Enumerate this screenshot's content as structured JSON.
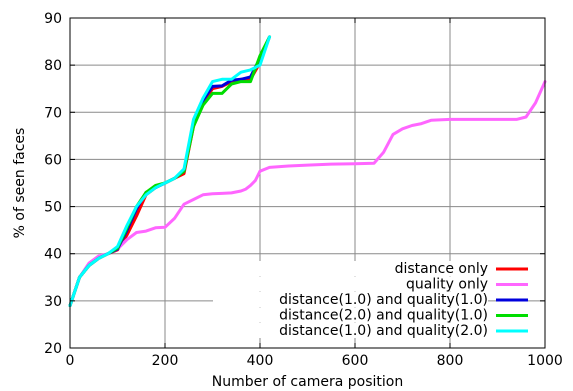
{
  "chart_data": {
    "type": "line",
    "title": "",
    "xlabel": "Number of camera position",
    "ylabel": "% of seen faces",
    "xlim": [
      0,
      1000
    ],
    "ylim": [
      20,
      90
    ],
    "xticks": [
      0,
      200,
      400,
      600,
      800,
      1000
    ],
    "yticks": [
      20,
      30,
      40,
      50,
      60,
      70,
      80,
      90
    ],
    "grid": true,
    "legend_position": "bottom-right",
    "series": [
      {
        "name": "distance only",
        "color": "#ff0000",
        "x": [
          0,
          20,
          40,
          60,
          80,
          100,
          120,
          140,
          160,
          180,
          200,
          220,
          240,
          260,
          280,
          300,
          320,
          340,
          360,
          380,
          400,
          420
        ],
        "y": [
          29,
          35,
          37.5,
          39,
          40,
          40.8,
          44,
          48,
          52.5,
          54,
          55,
          56,
          57,
          67,
          72,
          75,
          75.5,
          76.5,
          77,
          77,
          80.5,
          86
        ]
      },
      {
        "name": "quality only",
        "color": "#ff66ff",
        "x": [
          0,
          20,
          40,
          60,
          80,
          100,
          120,
          140,
          160,
          180,
          200,
          220,
          240,
          260,
          280,
          300,
          320,
          340,
          360,
          370,
          380,
          390,
          400,
          420,
          460,
          500,
          550,
          600,
          640,
          660,
          680,
          700,
          720,
          740,
          760,
          800,
          850,
          900,
          940,
          960,
          980,
          1000
        ],
        "y": [
          29,
          35,
          38,
          39.5,
          40,
          41,
          43,
          44.5,
          44.8,
          45.5,
          45.6,
          47.5,
          50.5,
          51.5,
          52.5,
          52.7,
          52.8,
          52.9,
          53.3,
          53.7,
          54.5,
          55.5,
          57.5,
          58.3,
          58.6,
          58.8,
          59,
          59.1,
          59.2,
          61.5,
          65.3,
          66.5,
          67.2,
          67.6,
          68.3,
          68.5,
          68.5,
          68.5,
          68.5,
          69,
          72,
          76.5
        ]
      },
      {
        "name": "distance(1.0) and quality(1.0)",
        "color": "#0000dd",
        "x": [
          0,
          20,
          40,
          60,
          80,
          100,
          120,
          140,
          160,
          180,
          200,
          220,
          240,
          260,
          280,
          300,
          320,
          340,
          360,
          380,
          400,
          420
        ],
        "y": [
          29,
          35,
          37.5,
          39,
          40,
          41,
          45,
          49.5,
          53,
          54,
          55,
          56,
          57.5,
          68,
          72.5,
          75.5,
          75.6,
          76.8,
          77,
          77.5,
          81.5,
          86
        ]
      },
      {
        "name": "distance(2.0) and quality(1.0)",
        "color": "#00dd00",
        "x": [
          0,
          20,
          40,
          60,
          80,
          100,
          120,
          140,
          160,
          180,
          200,
          220,
          240,
          260,
          280,
          300,
          320,
          340,
          360,
          380,
          400,
          420
        ],
        "y": [
          29,
          35,
          37.5,
          39,
          40,
          41.2,
          45.5,
          50,
          53,
          54.5,
          55,
          56,
          57.5,
          67,
          71.5,
          74,
          74,
          76,
          76.5,
          76.5,
          82,
          86
        ]
      },
      {
        "name": "distance(1.0) and quality(2.0)",
        "color": "#00ffff",
        "x": [
          0,
          20,
          40,
          60,
          80,
          100,
          120,
          140,
          160,
          180,
          200,
          220,
          240,
          260,
          280,
          300,
          320,
          340,
          360,
          380,
          400,
          420
        ],
        "y": [
          29,
          35,
          37.5,
          39,
          40,
          41.5,
          46,
          50,
          52.5,
          54,
          55,
          56,
          58,
          68.5,
          73,
          76.5,
          77,
          77,
          78.5,
          79,
          80,
          86
        ]
      }
    ]
  }
}
